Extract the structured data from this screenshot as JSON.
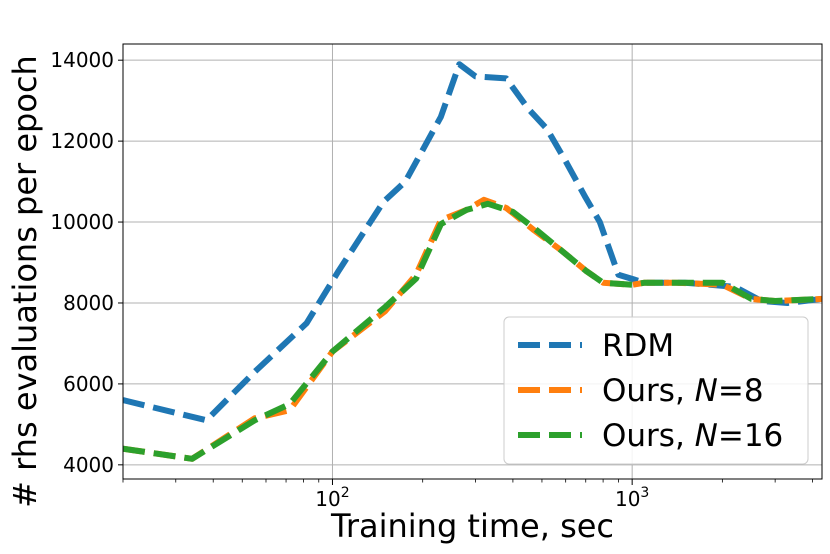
{
  "chart_data": {
    "type": "line",
    "title": "",
    "xlabel": "Training time, sec",
    "ylabel": "# rhs evaluations per epoch",
    "x_scale": "log",
    "xlim": [
      20,
      4300
    ],
    "ylim": [
      3650,
      14400
    ],
    "x_ticks": [
      {
        "value": 100,
        "base": "10",
        "exp": "2"
      },
      {
        "value": 1000,
        "base": "10",
        "exp": "3"
      }
    ],
    "y_ticks": [
      {
        "value": 4000,
        "label": "4000"
      },
      {
        "value": 6000,
        "label": "6000"
      },
      {
        "value": 8000,
        "label": "8000"
      },
      {
        "value": 10000,
        "label": "10000"
      },
      {
        "value": 12000,
        "label": "12000"
      },
      {
        "value": 14000,
        "label": "14000"
      }
    ],
    "grid": true,
    "legend": {
      "position": "lower-right"
    },
    "series": [
      {
        "name": "RDM",
        "color": "#1f77b4",
        "x": [
          20,
          38,
          55,
          82,
          105,
          148,
          175,
          230,
          265,
          300,
          380,
          450,
          520,
          600,
          700,
          780,
          900,
          1100,
          1500,
          2200,
          2700,
          3300,
          4300
        ],
        "y": [
          5600,
          5100,
          6300,
          7500,
          8800,
          10500,
          11000,
          12600,
          13900,
          13600,
          13550,
          12800,
          12300,
          11500,
          10600,
          10000,
          8700,
          8500,
          8500,
          8400,
          8050,
          8000,
          8100
        ]
      },
      {
        "name": "Ours, N = 8",
        "color": "#ff7f0e",
        "x": [
          20,
          34,
          55,
          72,
          100,
          150,
          190,
          230,
          280,
          320,
          380,
          470,
          580,
          700,
          800,
          1000,
          1100,
          1400,
          2000,
          2500,
          3000,
          4300
        ],
        "y": [
          4400,
          4150,
          5150,
          5350,
          6800,
          7800,
          8700,
          10050,
          10300,
          10550,
          10350,
          9800,
          9300,
          8800,
          8500,
          8450,
          8500,
          8500,
          8450,
          8100,
          8050,
          8100
        ]
      },
      {
        "name": "Ours, N = 16",
        "color": "#2ca02c",
        "x": [
          20,
          34,
          55,
          72,
          100,
          150,
          190,
          230,
          280,
          330,
          400,
          480,
          580,
          700,
          800,
          1000,
          1100,
          1400,
          2000,
          2500,
          3000,
          4300
        ],
        "y": [
          4400,
          4150,
          5100,
          5500,
          6800,
          7900,
          8600,
          9950,
          10300,
          10450,
          10250,
          9800,
          9300,
          8800,
          8500,
          8450,
          8500,
          8500,
          8500,
          8100,
          8050,
          8100
        ]
      }
    ]
  }
}
